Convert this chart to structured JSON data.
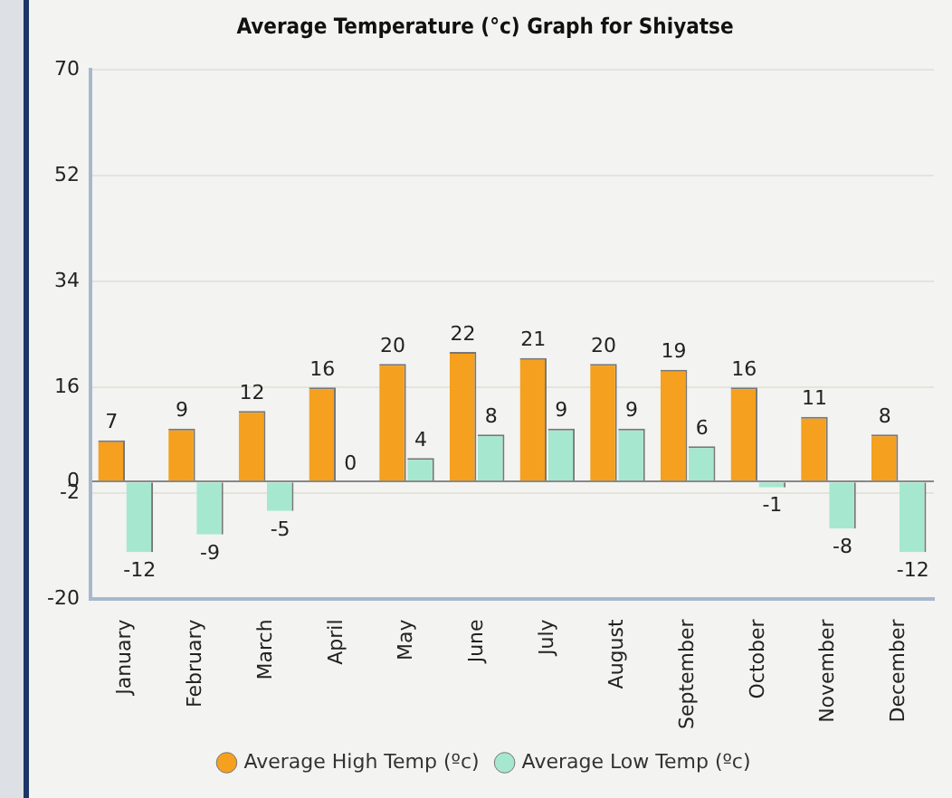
{
  "chart_data": {
    "type": "bar",
    "title": "Average Temperature (°c) Graph for Shiyatse",
    "categories": [
      "January",
      "February",
      "March",
      "April",
      "May",
      "June",
      "July",
      "August",
      "September",
      "October",
      "November",
      "December"
    ],
    "series": [
      {
        "name": "Average High Temp (ºc)",
        "color": "#f5a01e",
        "values": [
          7,
          9,
          12,
          16,
          20,
          22,
          21,
          20,
          19,
          16,
          11,
          8
        ]
      },
      {
        "name": "Average Low Temp (ºc)",
        "color": "#a6e8cf",
        "values": [
          -12,
          -9,
          -5,
          0,
          4,
          8,
          9,
          9,
          6,
          -1,
          -8,
          -12
        ]
      }
    ],
    "ylim": [
      -20,
      70
    ],
    "yticks": [
      -20,
      -2,
      0,
      16,
      34,
      52,
      70
    ],
    "grid": "y",
    "legend": "bottom",
    "data_labels": true
  }
}
